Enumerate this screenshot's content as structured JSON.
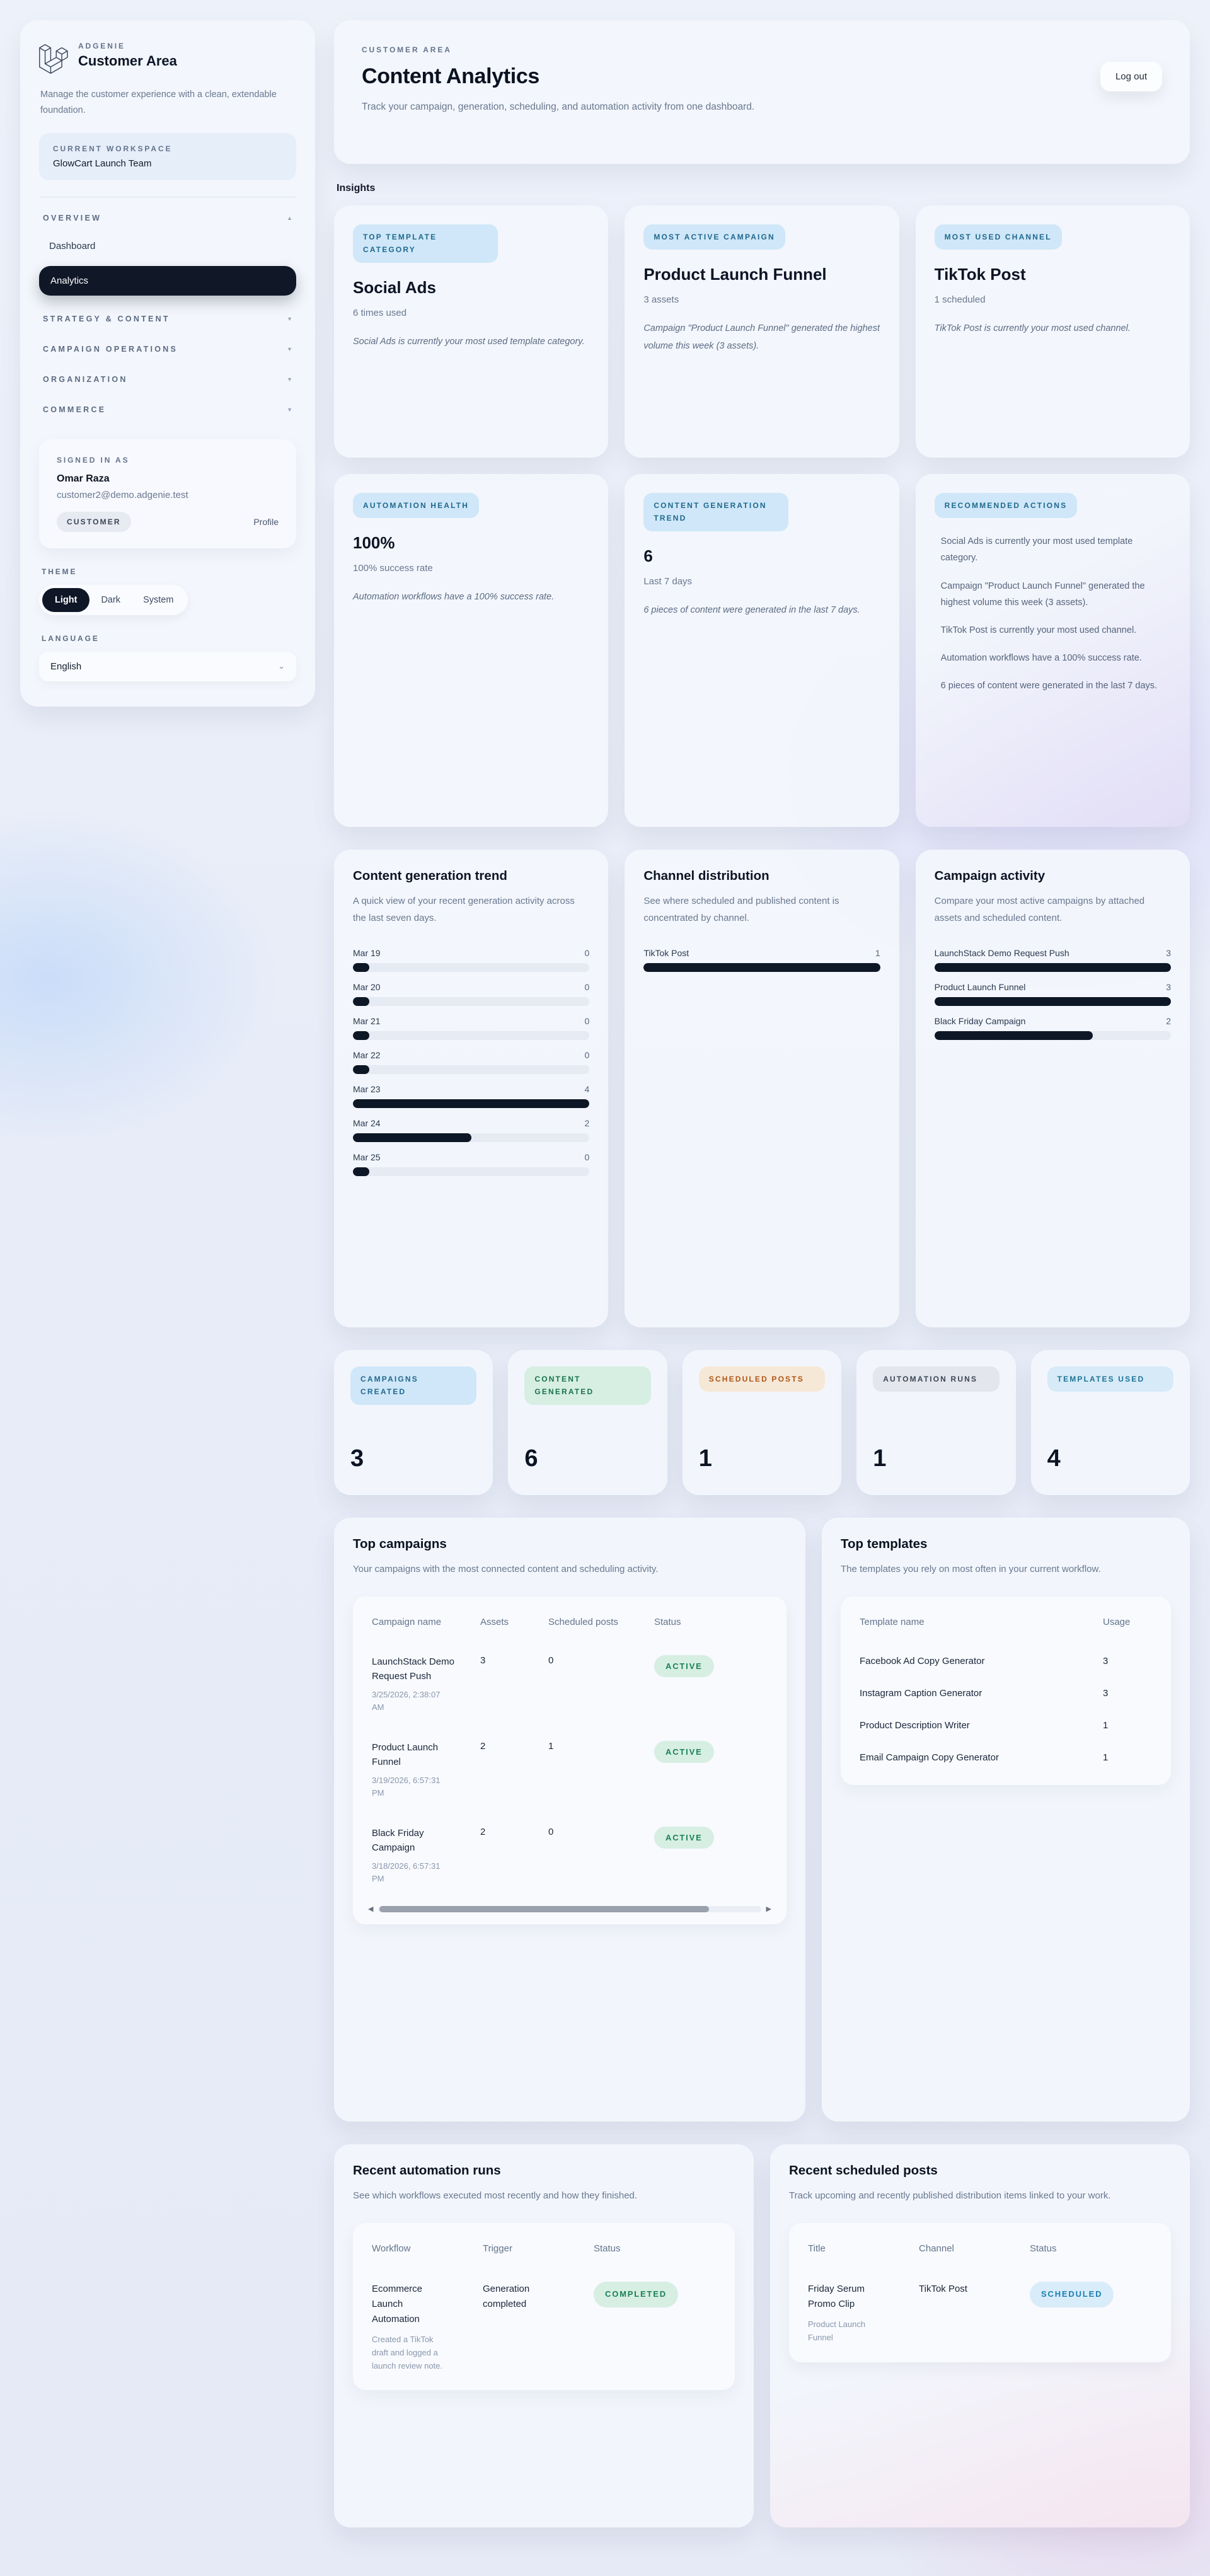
{
  "sidebar": {
    "brand": {
      "eyebrow": "ADGENIE",
      "title": "Customer Area"
    },
    "tagline": "Manage the customer experience with a clean, extendable foundation.",
    "workspace": {
      "label": "CURRENT WORKSPACE",
      "name": "GlowCart Launch Team"
    },
    "nav": {
      "groups": [
        {
          "label": "OVERVIEW",
          "arrow": "▲"
        },
        {
          "label": "STRATEGY & CONTENT",
          "arrow": "▼"
        },
        {
          "label": "CAMPAIGN OPERATIONS",
          "arrow": "▼"
        },
        {
          "label": "ORGANIZATION",
          "arrow": "▼"
        },
        {
          "label": "COMMERCE",
          "arrow": "▼"
        }
      ],
      "overview_items": [
        {
          "label": "Dashboard"
        },
        {
          "label": "Analytics"
        }
      ]
    },
    "signed_in": {
      "label": "SIGNED IN AS",
      "name": "Omar Raza",
      "email": "customer2@demo.adgenie.test",
      "role": "CUSTOMER",
      "profile": "Profile"
    },
    "theme": {
      "label": "THEME",
      "options": [
        "Light",
        "Dark",
        "System"
      ],
      "active": "Light"
    },
    "language": {
      "label": "LANGUAGE",
      "value": "English"
    }
  },
  "header": {
    "eyebrow": "CUSTOMER AREA",
    "title": "Content Analytics",
    "subtitle": "Track your campaign, generation, scheduling, and automation activity from one dashboard.",
    "logout_label": "Log out"
  },
  "insights_label": "Insights",
  "insights": {
    "cards": [
      {
        "badge": "TOP TEMPLATE CATEGORY",
        "title": "Social Ads",
        "meta": "6 times used",
        "note": "Social Ads is currently your most used template category."
      },
      {
        "badge": "MOST ACTIVE CAMPAIGN",
        "title": "Product Launch Funnel",
        "meta": "3 assets",
        "note": "Campaign \"Product Launch Funnel\" generated the highest volume this week (3 assets)."
      },
      {
        "badge": "MOST USED CHANNEL",
        "title": "TikTok Post",
        "meta": "1 scheduled",
        "note": "TikTok Post is currently your most used channel."
      },
      {
        "badge": "AUTOMATION HEALTH",
        "title": "100%",
        "meta": "100% success rate",
        "note": "Automation workflows have a 100% success rate."
      },
      {
        "badge": "CONTENT GENERATION TREND",
        "title": "6",
        "meta": "Last 7 days",
        "note": "6 pieces of content were generated in the last 7 days."
      }
    ],
    "recommended": {
      "badge": "RECOMMENDED ACTIONS",
      "items": [
        "Social Ads is currently your most used template category.",
        "Campaign \"Product Launch Funnel\" generated the highest volume this week (3 assets).",
        "TikTok Post is currently your most used channel.",
        "Automation workflows have a 100% success rate.",
        "6 pieces of content were generated in the last 7 days."
      ]
    }
  },
  "trend_chart": {
    "type": "bar",
    "title": "Content generation trend",
    "desc": "A quick view of your recent generation activity across the last seven days.",
    "bars": [
      {
        "label": "Mar 19",
        "value": "0",
        "pct": 7
      },
      {
        "label": "Mar 20",
        "value": "0",
        "pct": 7
      },
      {
        "label": "Mar 21",
        "value": "0",
        "pct": 7
      },
      {
        "label": "Mar 22",
        "value": "0",
        "pct": 7
      },
      {
        "label": "Mar 23",
        "value": "4",
        "pct": 100
      },
      {
        "label": "Mar 24",
        "value": "2",
        "pct": 50
      },
      {
        "label": "Mar 25",
        "value": "0",
        "pct": 7
      }
    ]
  },
  "channel_chart": {
    "type": "bar",
    "title": "Channel distribution",
    "desc": "See where scheduled and published content is concentrated by channel.",
    "bars": [
      {
        "label": "TikTok Post",
        "value": "1",
        "pct": 100
      }
    ]
  },
  "campaign_chart": {
    "type": "bar",
    "title": "Campaign activity",
    "desc": "Compare your most active campaigns by attached assets and scheduled content.",
    "bars": [
      {
        "label": "LaunchStack Demo Request Push",
        "value": "3",
        "pct": 100
      },
      {
        "label": "Product Launch Funnel",
        "value": "3",
        "pct": 100
      },
      {
        "label": "Black Friday Campaign",
        "value": "2",
        "pct": 67
      }
    ]
  },
  "stats": [
    {
      "label": "CAMPAIGNS CREATED",
      "value": "3"
    },
    {
      "label": "CONTENT GENERATED",
      "value": "6"
    },
    {
      "label": "SCHEDULED POSTS",
      "value": "1"
    },
    {
      "label": "AUTOMATION RUNS",
      "value": "1"
    },
    {
      "label": "TEMPLATES USED",
      "value": "4"
    }
  ],
  "top_campaigns": {
    "title": "Top campaigns",
    "desc": "Your campaigns with the most connected content and scheduling activity.",
    "headers": [
      "Campaign name",
      "Assets",
      "Scheduled posts",
      "Status"
    ],
    "rows": [
      {
        "name": "LaunchStack Demo Request Push",
        "date": "3/25/2026, 2:38:07 AM",
        "assets": "3",
        "scheduled": "0",
        "status": "ACTIVE"
      },
      {
        "name": "Product Launch Funnel",
        "date": "3/19/2026, 6:57:31 PM",
        "assets": "2",
        "scheduled": "1",
        "status": "ACTIVE"
      },
      {
        "name": "Black Friday Campaign",
        "date": "3/18/2026, 6:57:31 PM",
        "assets": "2",
        "scheduled": "0",
        "status": "ACTIVE"
      }
    ]
  },
  "top_templates": {
    "title": "Top templates",
    "desc": "The templates you rely on most often in your current workflow.",
    "headers": [
      "Template name",
      "Usage"
    ],
    "rows": [
      {
        "name": "Facebook Ad Copy Generator",
        "usage": "3"
      },
      {
        "name": "Instagram Caption Generator",
        "usage": "3"
      },
      {
        "name": "Product Description Writer",
        "usage": "1"
      },
      {
        "name": "Email Campaign Copy Generator",
        "usage": "1"
      }
    ]
  },
  "automation_runs": {
    "title": "Recent automation runs",
    "desc": "See which workflows executed most recently and how they finished.",
    "headers": [
      "Workflow",
      "Trigger",
      "Status"
    ],
    "rows": [
      {
        "workflow": "Ecommerce Launch Automation",
        "note": "Created a TikTok draft and logged a launch review note.",
        "trigger": "Generation completed",
        "status": "COMPLETED"
      }
    ]
  },
  "scheduled_posts": {
    "title": "Recent scheduled posts",
    "desc": "Track upcoming and recently published distribution items linked to your work.",
    "headers": [
      "Title",
      "Channel",
      "Status"
    ],
    "rows": [
      {
        "title": "Friday Serum Promo Clip",
        "campaign": "Product Launch Funnel",
        "channel": "TikTok Post",
        "status": "SCHEDULED"
      }
    ]
  }
}
